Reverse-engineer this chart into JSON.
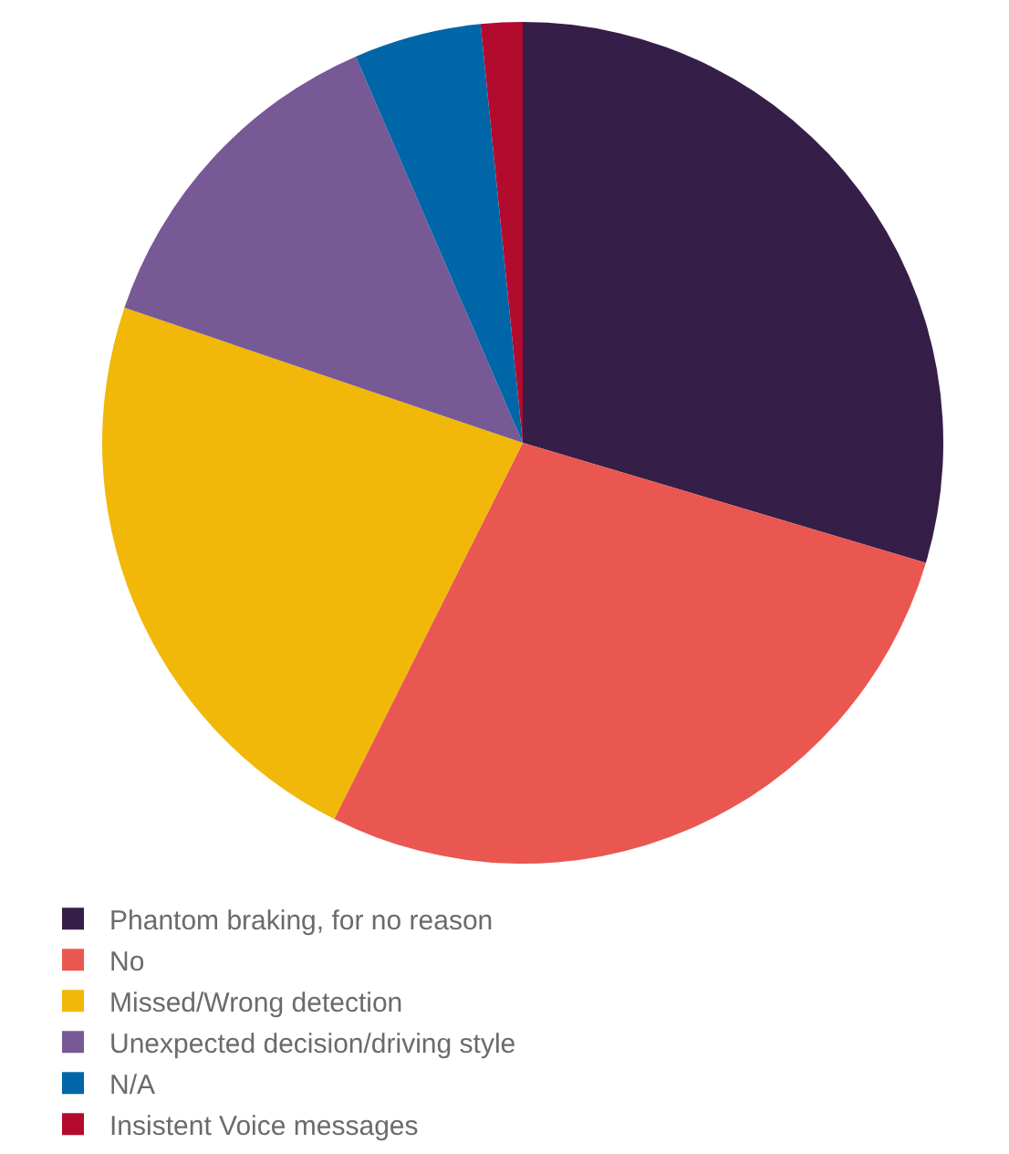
{
  "chart_data": {
    "type": "pie",
    "categories": [
      "Phantom braking, for no reason",
      "No",
      "Missed/Wrong detection",
      "Unexpected decision/driving style",
      "N/A",
      "Insistent Voice messages"
    ],
    "values": [
      29.6,
      27.8,
      22.8,
      13.3,
      4.9,
      1.6
    ],
    "colors": [
      "#351e48",
      "#ea5750",
      "#f1b80a",
      "#775996",
      "#0066a8",
      "#b20b2d"
    ],
    "legend": "bottom"
  }
}
